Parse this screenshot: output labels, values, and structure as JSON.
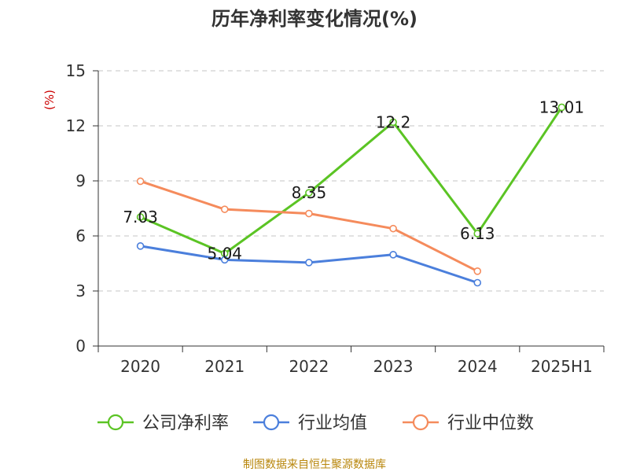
{
  "chart_data": {
    "type": "line",
    "title": "历年净利率变化情况(%)",
    "ylabel": "(%)",
    "xlabel": "",
    "categories": [
      "2020",
      "2021",
      "2022",
      "2023",
      "2024",
      "2025H1"
    ],
    "ylim": [
      0,
      15
    ],
    "yticks": [
      0,
      3,
      6,
      9,
      12,
      15
    ],
    "grid": true,
    "legend_position": "bottom",
    "series": [
      {
        "name": "公司净利率",
        "color": "#5bc424",
        "values": [
          7.03,
          5.04,
          8.35,
          12.2,
          6.13,
          13.01
        ],
        "labels": [
          "7.03",
          "5.04",
          "8.35",
          "12.2",
          "6.13",
          "13.01"
        ]
      },
      {
        "name": "行业均值",
        "color": "#4b7fdc",
        "values": [
          5.45,
          4.7,
          4.55,
          4.98,
          3.45,
          null
        ]
      },
      {
        "name": "行业中位数",
        "color": "#f58b5c",
        "values": [
          8.98,
          7.45,
          7.22,
          6.4,
          4.08,
          null
        ]
      }
    ]
  },
  "footer": {
    "source": "制图数据来自恒生聚源数据库"
  }
}
